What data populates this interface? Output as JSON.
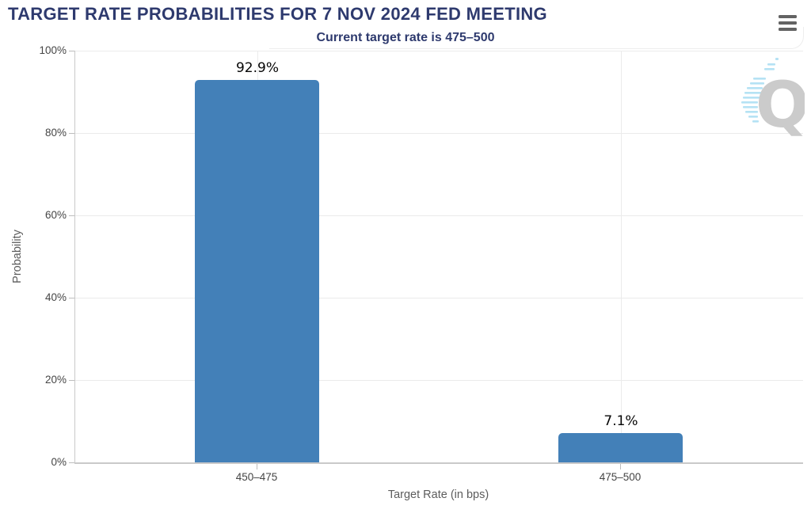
{
  "header": {
    "title": "TARGET RATE PROBABILITIES FOR 7 NOV 2024 FED MEETING"
  },
  "chart_data": {
    "type": "bar",
    "title": "TARGET RATE PROBABILITIES FOR 7 NOV 2024 FED MEETING",
    "subtitle": "Current target rate is 475–500",
    "categories": [
      "450–475",
      "475–500"
    ],
    "values": [
      92.9,
      7.1
    ],
    "value_labels": [
      "92.9%",
      "7.1%"
    ],
    "xlabel": "Target Rate (in bps)",
    "ylabel": "Probability",
    "ylim": [
      0,
      100
    ],
    "y_ticks": [
      0,
      20,
      40,
      60,
      80,
      100
    ],
    "y_tick_labels": [
      "0%",
      "20%",
      "40%",
      "60%",
      "80%",
      "100%"
    ],
    "grid": true,
    "legend_position": "none",
    "bar_color": "#4380b8"
  },
  "colors": {
    "navy": "#2e3a6e",
    "bar_blue": "#4380b8",
    "grid": "#ebebeb",
    "axis": "#c9c9c9",
    "tick_label": "#454545",
    "axis_title": "#5c5c5c",
    "menu_icon": "#636363",
    "watermark_gray": "#cbcbcb",
    "watermark_blue": "#b5e2f4"
  },
  "watermark": {
    "letter": "Q"
  }
}
